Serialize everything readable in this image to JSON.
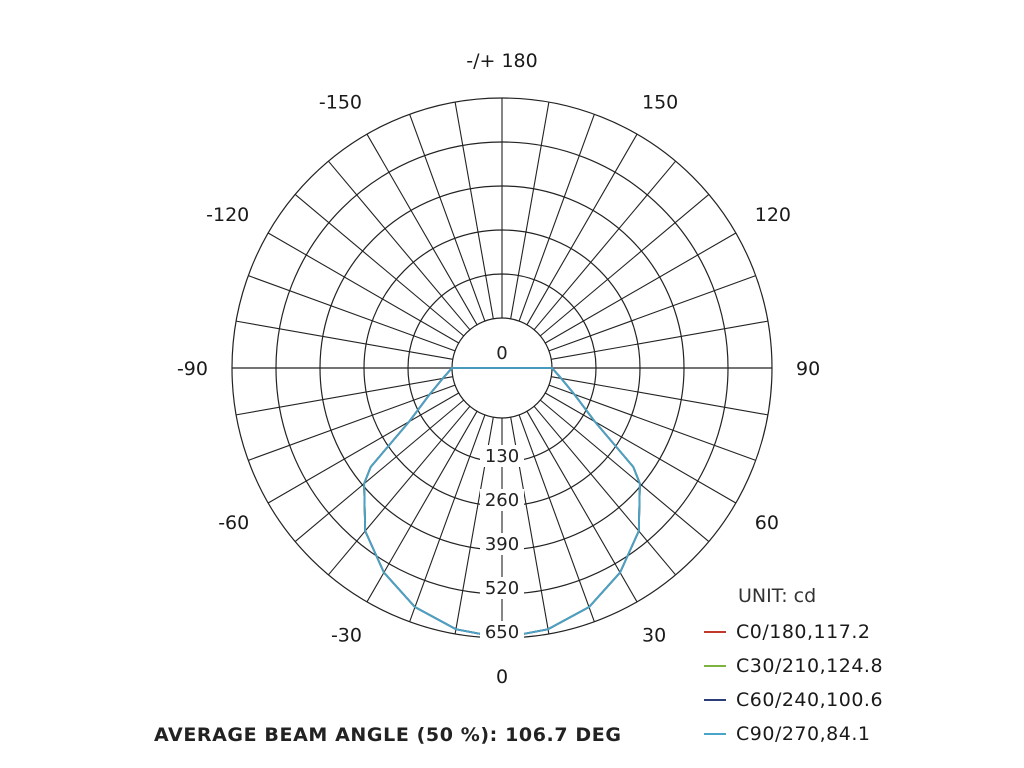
{
  "chart_data": {
    "type": "polar",
    "angle_labels": [
      {
        "angle": 180,
        "text": "-/+ 180"
      },
      {
        "angle": 150,
        "text": "150"
      },
      {
        "angle": 120,
        "text": "120"
      },
      {
        "angle": 90,
        "text": "90"
      },
      {
        "angle": 60,
        "text": "60"
      },
      {
        "angle": 30,
        "text": "30"
      },
      {
        "angle": 0,
        "text": "0"
      },
      {
        "angle": -30,
        "text": "-30"
      },
      {
        "angle": -60,
        "text": "-60"
      },
      {
        "angle": -90,
        "text": "-90"
      },
      {
        "angle": -120,
        "text": "-120"
      },
      {
        "angle": -150,
        "text": "-150"
      }
    ],
    "radial_ticks": [
      "0",
      "130",
      "260",
      "390",
      "520",
      "650"
    ],
    "radial_max": 650,
    "grid_angle_step": 10,
    "grid": true,
    "unit": "UNIT: cd",
    "series": [
      {
        "name": "C0/180,117.2",
        "color": "#c0392b",
        "angles": [
          0,
          10,
          20,
          30,
          40,
          50,
          53,
          60,
          70,
          80,
          90
        ],
        "values": [
          650,
          636,
          604,
          550,
          481,
          384,
          338,
          169,
          80,
          30,
          0
        ]
      },
      {
        "name": "C30/210,124.8",
        "color": "#7cb342",
        "angles": [
          0,
          10,
          20,
          30,
          40,
          50,
          53,
          60,
          70,
          80,
          90
        ],
        "values": [
          650,
          636,
          604,
          550,
          481,
          384,
          338,
          169,
          80,
          30,
          0
        ]
      },
      {
        "name": "C60/240,100.6",
        "color": "#2c3e7a",
        "angles": [
          0,
          10,
          20,
          30,
          40,
          50,
          53,
          60,
          70,
          80,
          90
        ],
        "values": [
          650,
          636,
          604,
          550,
          481,
          384,
          338,
          169,
          80,
          30,
          0
        ]
      },
      {
        "name": "C90/270,84.1",
        "color": "#4aa3c8",
        "angles": [
          0,
          10,
          20,
          30,
          40,
          50,
          53,
          60,
          70,
          80,
          90
        ],
        "values": [
          650,
          636,
          604,
          550,
          481,
          384,
          338,
          169,
          80,
          30,
          0
        ]
      }
    ],
    "caption": "AVERAGE BEAM ANGLE (50 %): 106.7 DEG"
  }
}
